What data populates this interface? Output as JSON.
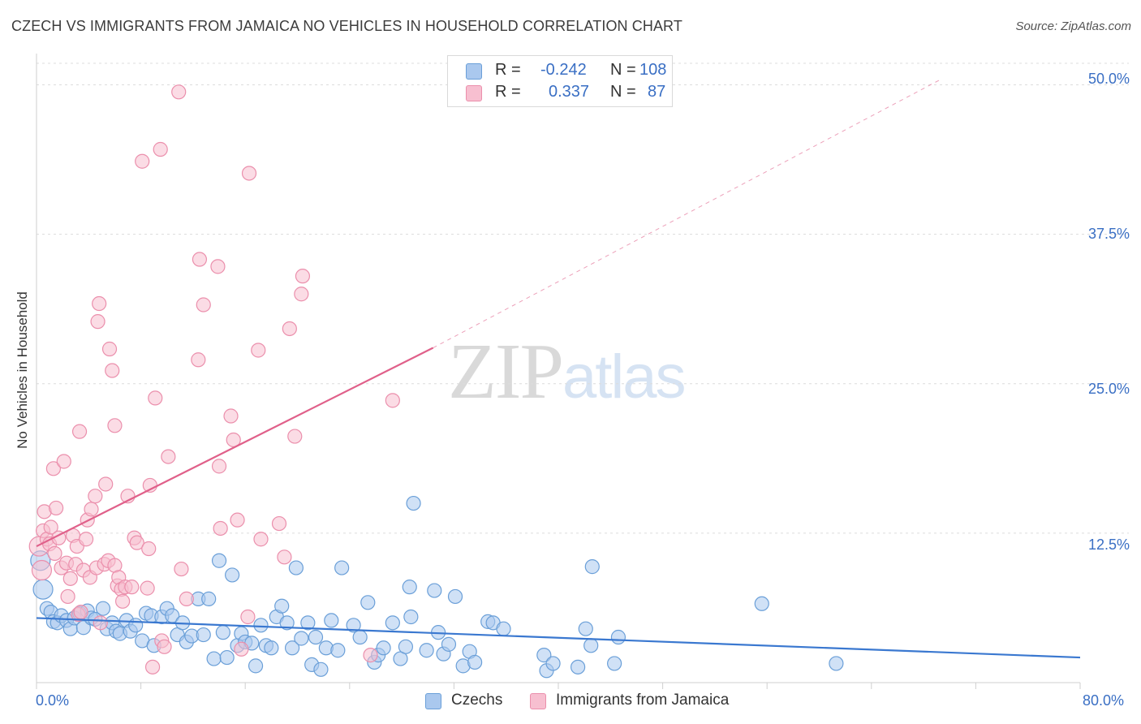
{
  "title": "CZECH VS IMMIGRANTS FROM JAMAICA NO VEHICLES IN HOUSEHOLD CORRELATION CHART",
  "source": "Source: ZipAtlas.com",
  "watermark": {
    "zip": "ZIP",
    "atlas": "atlas"
  },
  "legend_top": {
    "rows": [
      {
        "r_label": "R =",
        "r_value": "-0.242",
        "n_label": "N =",
        "n_value": "108"
      },
      {
        "r_label": "R =",
        "r_value": "0.337",
        "n_label": "N =",
        "n_value": "87"
      }
    ]
  },
  "bottom_legend": {
    "czechs": "Czechs",
    "jamaica": "Immigrants from Jamaica"
  },
  "colors": {
    "czech_fill": "#aac8ee",
    "czech_stroke": "#6a9fd8",
    "czech_line": "#3a78d0",
    "jamaica_fill": "#f7bfd0",
    "jamaica_stroke": "#eb8fac",
    "jamaica_line": "#e0608a",
    "tick_text": "#3a6fc4",
    "grid": "#dcdcdc"
  },
  "chart_data": {
    "type": "scatter",
    "title": "CZECH VS IMMIGRANTS FROM JAMAICA NO VEHICLES IN HOUSEHOLD CORRELATION CHART",
    "xlabel": "",
    "ylabel": "No Vehicles in Household",
    "xlim": [
      0,
      80
    ],
    "ylim": [
      0,
      52
    ],
    "x_tick_labels": [
      "0.0%",
      "80.0%"
    ],
    "y_ticks": [
      12.5,
      25.0,
      37.5,
      50.0
    ],
    "y_tick_labels": [
      "12.5%",
      "25.0%",
      "37.5%",
      "50.0%"
    ],
    "grid": true,
    "legend_placement": "top-center",
    "series": [
      {
        "name": "Czechs",
        "r": -0.242,
        "n": 108,
        "trend": {
          "x": [
            0,
            80
          ],
          "y": [
            5.4,
            2.1
          ]
        },
        "points": [
          [
            0.3,
            10.2
          ],
          [
            0.5,
            7.8
          ],
          [
            0.8,
            6.2
          ],
          [
            1.1,
            5.9
          ],
          [
            1.3,
            5.1
          ],
          [
            1.6,
            5.0
          ],
          [
            1.9,
            5.6
          ],
          [
            2.3,
            5.2
          ],
          [
            2.6,
            4.5
          ],
          [
            2.9,
            5.4
          ],
          [
            3.3,
            5.8
          ],
          [
            3.6,
            4.6
          ],
          [
            3.9,
            6.0
          ],
          [
            4.2,
            5.4
          ],
          [
            4.5,
            5.3
          ],
          [
            5.1,
            6.2
          ],
          [
            5.4,
            4.5
          ],
          [
            5.8,
            5.0
          ],
          [
            6.1,
            4.3
          ],
          [
            6.4,
            4.1
          ],
          [
            6.9,
            5.2
          ],
          [
            7.2,
            4.3
          ],
          [
            7.6,
            4.8
          ],
          [
            8.1,
            3.5
          ],
          [
            8.4,
            5.8
          ],
          [
            8.8,
            5.6
          ],
          [
            9.0,
            3.1
          ],
          [
            9.6,
            5.5
          ],
          [
            10.0,
            6.2
          ],
          [
            10.4,
            5.6
          ],
          [
            10.8,
            4.0
          ],
          [
            11.2,
            5.0
          ],
          [
            11.5,
            3.4
          ],
          [
            11.9,
            3.9
          ],
          [
            12.4,
            7.0
          ],
          [
            12.8,
            4.0
          ],
          [
            13.2,
            7.0
          ],
          [
            13.6,
            2.0
          ],
          [
            14.0,
            10.2
          ],
          [
            14.3,
            4.2
          ],
          [
            14.6,
            2.1
          ],
          [
            15.0,
            9.0
          ],
          [
            15.4,
            3.1
          ],
          [
            15.7,
            4.1
          ],
          [
            16.0,
            3.4
          ],
          [
            16.5,
            3.3
          ],
          [
            16.8,
            1.4
          ],
          [
            17.2,
            4.8
          ],
          [
            17.6,
            3.1
          ],
          [
            18.0,
            2.9
          ],
          [
            18.4,
            5.5
          ],
          [
            18.8,
            6.4
          ],
          [
            19.2,
            5.0
          ],
          [
            19.6,
            2.9
          ],
          [
            19.9,
            9.6
          ],
          [
            20.3,
            3.7
          ],
          [
            20.8,
            5.0
          ],
          [
            21.1,
            1.5
          ],
          [
            21.4,
            3.8
          ],
          [
            21.8,
            1.1
          ],
          [
            22.2,
            2.9
          ],
          [
            22.6,
            5.2
          ],
          [
            23.1,
            2.7
          ],
          [
            23.4,
            9.6
          ],
          [
            24.3,
            4.8
          ],
          [
            24.8,
            3.8
          ],
          [
            25.4,
            6.7
          ],
          [
            25.9,
            1.7
          ],
          [
            26.2,
            2.3
          ],
          [
            26.6,
            2.9
          ],
          [
            27.3,
            5.0
          ],
          [
            27.9,
            2.0
          ],
          [
            28.3,
            3.0
          ],
          [
            28.9,
            15.0
          ],
          [
            28.6,
            8.0
          ],
          [
            28.7,
            5.5
          ],
          [
            29.9,
            2.7
          ],
          [
            30.5,
            7.7
          ],
          [
            30.8,
            4.2
          ],
          [
            31.2,
            2.4
          ],
          [
            31.6,
            3.2
          ],
          [
            32.1,
            7.2
          ],
          [
            32.7,
            1.4
          ],
          [
            33.2,
            2.6
          ],
          [
            33.6,
            1.7
          ],
          [
            34.6,
            5.1
          ],
          [
            35.0,
            5.0
          ],
          [
            35.8,
            4.5
          ],
          [
            38.9,
            2.3
          ],
          [
            39.1,
            1.0
          ],
          [
            39.6,
            1.6
          ],
          [
            41.5,
            1.3
          ],
          [
            42.1,
            4.5
          ],
          [
            42.5,
            3.1
          ],
          [
            42.6,
            9.7
          ],
          [
            44.3,
            1.6
          ],
          [
            44.6,
            3.8
          ],
          [
            55.6,
            6.6
          ],
          [
            61.3,
            1.6
          ]
        ]
      },
      {
        "name": "Immigrants from Jamaica",
        "r": 0.337,
        "n": 87,
        "trend": {
          "x": [
            0,
            30.4
          ],
          "y": [
            11.4,
            28.0
          ]
        },
        "trend_extension": {
          "x": [
            30.4,
            69.4
          ],
          "y": [
            28.0,
            50.5
          ]
        },
        "points": [
          [
            0.2,
            11.4
          ],
          [
            0.4,
            9.4
          ],
          [
            0.5,
            12.7
          ],
          [
            0.6,
            14.3
          ],
          [
            0.8,
            12.0
          ],
          [
            1.0,
            11.6
          ],
          [
            1.1,
            13.0
          ],
          [
            1.3,
            17.9
          ],
          [
            1.4,
            10.8
          ],
          [
            1.5,
            14.6
          ],
          [
            1.7,
            12.1
          ],
          [
            1.9,
            9.6
          ],
          [
            2.1,
            18.5
          ],
          [
            2.3,
            10.0
          ],
          [
            2.4,
            7.2
          ],
          [
            2.6,
            8.7
          ],
          [
            2.8,
            12.3
          ],
          [
            3.0,
            9.9
          ],
          [
            3.1,
            11.4
          ],
          [
            3.2,
            5.7
          ],
          [
            3.3,
            21.0
          ],
          [
            3.4,
            5.9
          ],
          [
            3.6,
            9.4
          ],
          [
            3.8,
            12.0
          ],
          [
            3.9,
            13.6
          ],
          [
            4.1,
            8.8
          ],
          [
            4.2,
            14.5
          ],
          [
            4.5,
            15.6
          ],
          [
            4.6,
            9.6
          ],
          [
            4.7,
            30.2
          ],
          [
            4.8,
            31.7
          ],
          [
            4.9,
            5.0
          ],
          [
            5.2,
            9.9
          ],
          [
            5.3,
            16.6
          ],
          [
            5.5,
            10.2
          ],
          [
            5.6,
            27.9
          ],
          [
            5.8,
            26.1
          ],
          [
            6.0,
            9.8
          ],
          [
            6.0,
            21.5
          ],
          [
            6.2,
            8.1
          ],
          [
            6.3,
            8.8
          ],
          [
            6.5,
            7.8
          ],
          [
            6.6,
            6.8
          ],
          [
            6.8,
            8.0
          ],
          [
            7.0,
            15.6
          ],
          [
            7.3,
            8.0
          ],
          [
            7.5,
            12.1
          ],
          [
            7.7,
            11.7
          ],
          [
            8.1,
            43.6
          ],
          [
            8.5,
            7.9
          ],
          [
            8.6,
            11.2
          ],
          [
            8.7,
            16.5
          ],
          [
            8.9,
            1.3
          ],
          [
            9.1,
            23.8
          ],
          [
            9.5,
            44.6
          ],
          [
            9.6,
            3.5
          ],
          [
            9.8,
            3.0
          ],
          [
            10.1,
            18.9
          ],
          [
            10.9,
            49.4
          ],
          [
            11.1,
            9.5
          ],
          [
            11.5,
            7.0
          ],
          [
            12.4,
            27.0
          ],
          [
            12.5,
            35.4
          ],
          [
            12.8,
            31.6
          ],
          [
            13.9,
            34.8
          ],
          [
            14.0,
            18.1
          ],
          [
            14.1,
            12.9
          ],
          [
            14.9,
            22.3
          ],
          [
            15.1,
            20.3
          ],
          [
            15.4,
            13.6
          ],
          [
            15.7,
            2.8
          ],
          [
            16.2,
            5.5
          ],
          [
            16.3,
            42.6
          ],
          [
            17.0,
            27.8
          ],
          [
            17.2,
            12.0
          ],
          [
            18.6,
            13.3
          ],
          [
            19.0,
            10.5
          ],
          [
            19.4,
            29.6
          ],
          [
            19.8,
            20.6
          ],
          [
            20.3,
            32.5
          ],
          [
            20.4,
            34.0
          ],
          [
            25.6,
            2.3
          ],
          [
            27.3,
            23.6
          ]
        ]
      }
    ]
  }
}
